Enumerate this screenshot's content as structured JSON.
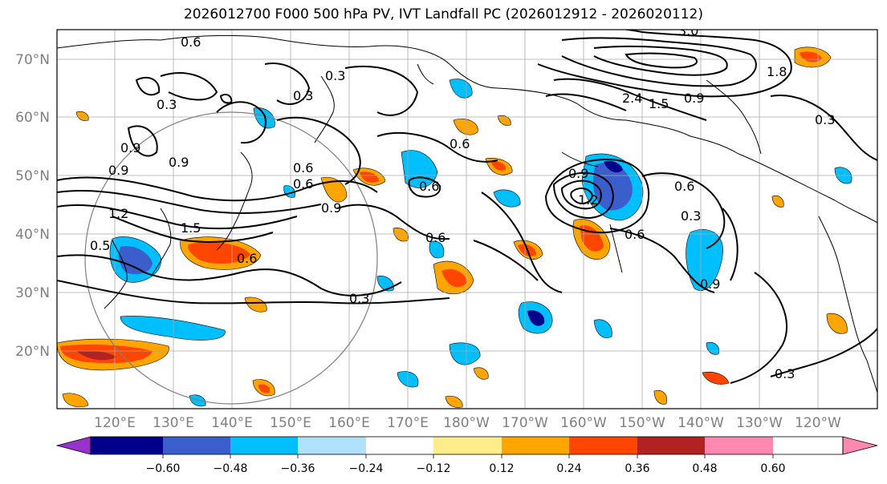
{
  "title": "2026012700 F000 500 hPa PV, IVT Landfall PC (2026012912 - 2026020112)",
  "lat_ticks": [
    "70°N",
    "60°N",
    "50°N",
    "40°N",
    "30°N",
    "20°N"
  ],
  "lon_ticks": [
    "120°E",
    "130°E",
    "140°E",
    "150°E",
    "160°E",
    "170°E",
    "180°W",
    "170°W",
    "160°W",
    "150°W",
    "140°W",
    "130°W",
    "120°W"
  ],
  "colorbar": {
    "ticks": [
      "−0.60",
      "−0.48",
      "−0.36",
      "−0.24",
      "−0.12",
      "0.12",
      "0.24",
      "0.36",
      "0.48",
      "0.60"
    ],
    "colors": [
      "#9932cc",
      "#00008b",
      "#3a5fcd",
      "#00bfff",
      "#b0e2ff",
      "#ffffff",
      "#ffec8b",
      "#ffa500",
      "#ff4500",
      "#b22222",
      "#ff88b0"
    ]
  },
  "contour_labels": [
    "0.6",
    "0.3",
    "0.3",
    "1.8",
    "2.4",
    "1.5",
    "0.9",
    "3.0",
    "0.3",
    "0.9",
    "0.9",
    "0.9",
    "0.6",
    "0.6",
    "0.6",
    "0.3",
    "0.6",
    "1.2",
    "1.5",
    "0.5",
    "0.6",
    "0.3",
    "0.6",
    "0.9",
    "1.2",
    "0.6",
    "0.9",
    "0.6",
    "0.9",
    "0.3",
    "0.3"
  ]
}
